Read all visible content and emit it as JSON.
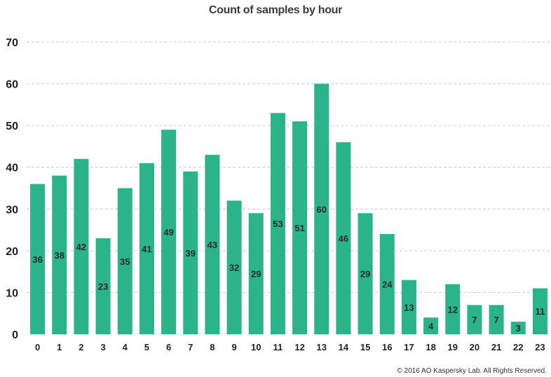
{
  "chart_data": {
    "type": "bar",
    "title": "Count of samples by hour",
    "categories": [
      "0",
      "1",
      "2",
      "3",
      "4",
      "5",
      "6",
      "7",
      "8",
      "9",
      "10",
      "11",
      "12",
      "13",
      "14",
      "15",
      "16",
      "17",
      "18",
      "19",
      "20",
      "21",
      "22",
      "23"
    ],
    "values": [
      36,
      38,
      42,
      23,
      35,
      41,
      49,
      39,
      43,
      32,
      29,
      53,
      51,
      60,
      46,
      29,
      24,
      13,
      4,
      12,
      7,
      7,
      3,
      11
    ],
    "xlabel": "",
    "ylabel": "",
    "ylim": [
      0,
      70
    ],
    "yticks": [
      0,
      10,
      20,
      30,
      40,
      50,
      60,
      70
    ],
    "grid": true,
    "legend": "none",
    "bar_color": "#2bb38a",
    "grid_color": "#cccccc"
  },
  "footer": {
    "copyright": "© 2016 AO Kaspersky Lab. All Rights Reserved."
  }
}
